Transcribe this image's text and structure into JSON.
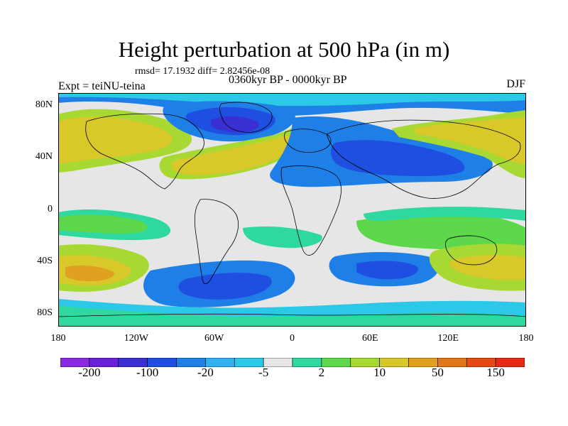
{
  "title": "Height perturbation at 500 hPa (in m)",
  "stats": "rmsd= 17.1932 diff= 2.82456e-08",
  "experiment": "Expt = teiNU-teina",
  "period": "0360kyr BP - 0000kyr BP",
  "season": "DJF",
  "lat_labels": [
    "80N",
    "40N",
    "0",
    "40S",
    "80S"
  ],
  "lat_values": [
    80,
    40,
    0,
    -40,
    -80
  ],
  "lon_labels": [
    "180",
    "120W",
    "60W",
    "0",
    "60E",
    "120E",
    "180"
  ],
  "lon_values": [
    -180,
    -120,
    -60,
    0,
    60,
    120,
    180
  ],
  "colorbar": {
    "colors": [
      "#8a2be2",
      "#6a1fd8",
      "#3a2fd0",
      "#1f4fe0",
      "#1e7fe6",
      "#33b0f0",
      "#2cc8e8",
      "#e6e6e6",
      "#2ed8a0",
      "#5cd84a",
      "#a8d832",
      "#d8c82a",
      "#e0a020",
      "#e07818",
      "#e64a14",
      "#e62a14"
    ],
    "labels": [
      "-200",
      "-100",
      "-20",
      "-5",
      "2",
      "10",
      "50",
      "150"
    ]
  },
  "field_colors": {
    "strong_neg": "#3a2fd0",
    "neg": "#1f4fe0",
    "mod_neg": "#1e7fe6",
    "weak_neg": "#2cc8e8",
    "zero": "#e6e6e6",
    "weak_pos": "#2ed8a0",
    "pos": "#5cd84a",
    "mod_pos": "#a8d832",
    "strong_pos": "#d8c82a",
    "very_pos": "#e0a020"
  }
}
